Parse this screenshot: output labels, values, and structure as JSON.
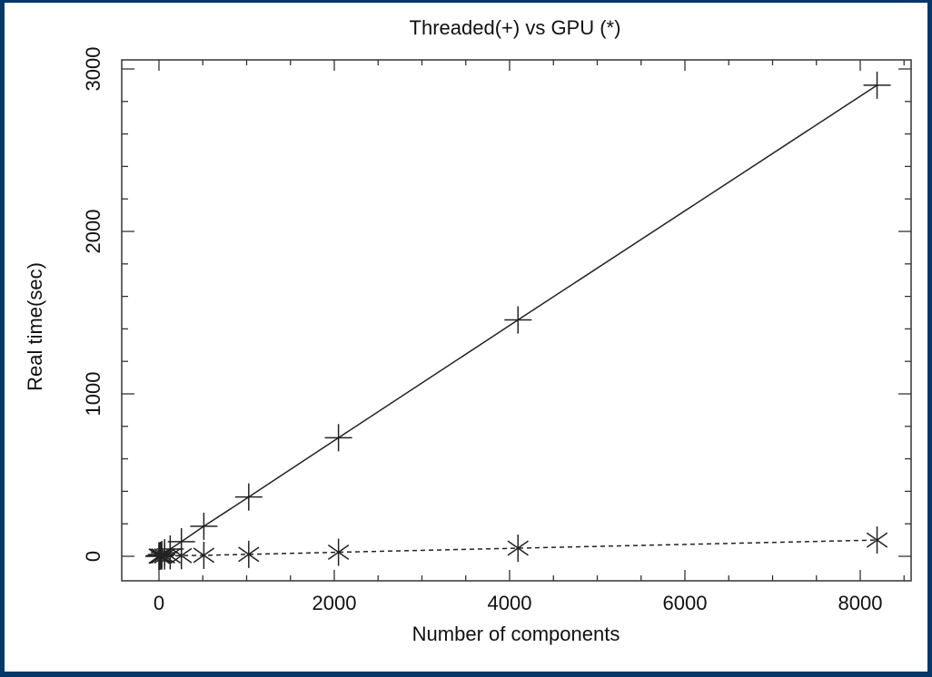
{
  "chart_data": {
    "type": "line",
    "title": "Threaded(+) vs GPU (*)",
    "xlabel": "Number of components",
    "ylabel": "Real time(sec)",
    "xlim": [
      -400,
      8550
    ],
    "ylim": [
      -150,
      3050
    ],
    "xticks": [
      0,
      2000,
      4000,
      6000,
      8000
    ],
    "yticks": [
      0,
      1000,
      2000,
      3000
    ],
    "grid": false,
    "legend": "none (markers described in title)",
    "x": [
      1,
      2,
      4,
      8,
      16,
      32,
      64,
      128,
      256,
      512,
      1024,
      2048,
      4096,
      8192
    ],
    "series": [
      {
        "name": "Threaded (+)",
        "marker": "+",
        "line": "solid",
        "values": [
          1,
          1,
          1,
          2,
          5,
          11,
          22,
          45,
          90,
          185,
          365,
          730,
          1455,
          2900
        ]
      },
      {
        "name": "GPU (*)",
        "marker": "*",
        "line": "dotted",
        "values": [
          1,
          1,
          1,
          1,
          1,
          2,
          2,
          3,
          4,
          6,
          12,
          25,
          50,
          100
        ]
      }
    ]
  }
}
